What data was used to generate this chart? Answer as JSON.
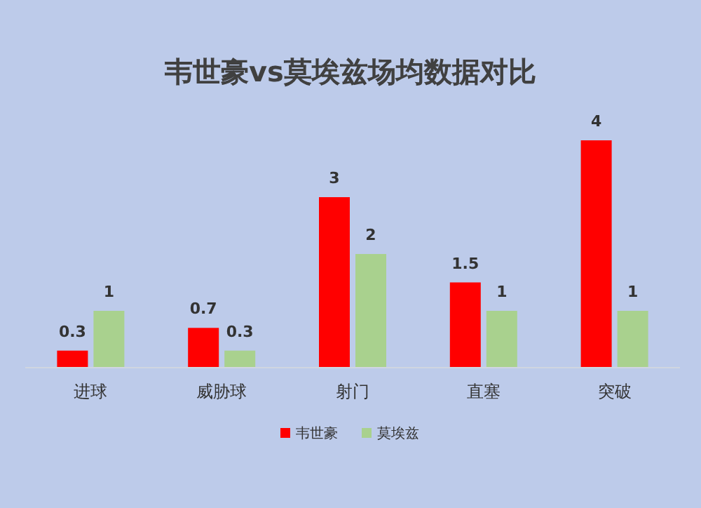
{
  "chart_data": {
    "type": "bar",
    "title": "韦世豪vs莫埃兹场均数据对比",
    "categories": [
      "进球",
      "威胁球",
      "射门",
      "直塞",
      "突破"
    ],
    "series": [
      {
        "name": "韦世豪",
        "color": "#ff0000",
        "values": [
          0.3,
          0.7,
          3,
          1.5,
          4
        ]
      },
      {
        "name": "莫埃兹",
        "color": "#a9d18e",
        "values": [
          1,
          0.3,
          2,
          1,
          1
        ]
      }
    ],
    "data_labels": true,
    "legend": "bottom"
  }
}
